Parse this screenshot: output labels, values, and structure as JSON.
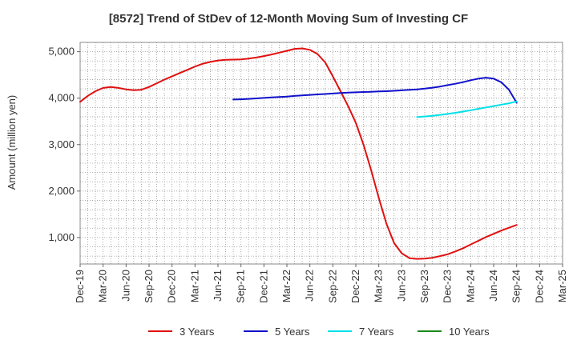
{
  "chart_data": {
    "type": "line",
    "title": "[8572]  Trend of StDev of 12-Month Moving Sum of Investing CF",
    "xlabel": "",
    "ylabel": "Amount (million yen)",
    "ylim": [
      430,
      5200
    ],
    "yticks": [
      1000,
      2000,
      3000,
      4000,
      5000
    ],
    "ytick_labels": [
      "1,000",
      "2,000",
      "3,000",
      "4,000",
      "5,000"
    ],
    "xtick_labels": [
      "Dec-19",
      "Mar-20",
      "Jun-20",
      "Sep-20",
      "Dec-20",
      "Mar-21",
      "Jun-21",
      "Sep-21",
      "Dec-21",
      "Mar-22",
      "Jun-22",
      "Sep-22",
      "Dec-22",
      "Mar-23",
      "Jun-23",
      "Sep-23",
      "Dec-23",
      "Mar-24",
      "Jun-24",
      "Sep-24",
      "Dec-24",
      "Mar-25"
    ],
    "grid": true,
    "legend_position": "bottom",
    "series": [
      {
        "name": "3 Years",
        "color": "#e01010",
        "points": [
          [
            "Dec-19",
            3920
          ],
          [
            "Jan-20",
            4050
          ],
          [
            "Feb-20",
            4150
          ],
          [
            "Mar-20",
            4220
          ],
          [
            "Apr-20",
            4240
          ],
          [
            "May-20",
            4220
          ],
          [
            "Jun-20",
            4190
          ],
          [
            "Jul-20",
            4170
          ],
          [
            "Aug-20",
            4180
          ],
          [
            "Sep-20",
            4240
          ],
          [
            "Oct-20",
            4320
          ],
          [
            "Nov-20",
            4400
          ],
          [
            "Dec-20",
            4470
          ],
          [
            "Jan-21",
            4540
          ],
          [
            "Feb-21",
            4610
          ],
          [
            "Mar-21",
            4680
          ],
          [
            "Apr-21",
            4740
          ],
          [
            "May-21",
            4780
          ],
          [
            "Jun-21",
            4810
          ],
          [
            "Jul-21",
            4825
          ],
          [
            "Aug-21",
            4830
          ],
          [
            "Sep-21",
            4835
          ],
          [
            "Oct-21",
            4850
          ],
          [
            "Nov-21",
            4875
          ],
          [
            "Dec-21",
            4905
          ],
          [
            "Jan-22",
            4940
          ],
          [
            "Feb-22",
            4980
          ],
          [
            "Mar-22",
            5020
          ],
          [
            "Apr-22",
            5060
          ],
          [
            "May-22",
            5070
          ],
          [
            "Jun-22",
            5040
          ],
          [
            "Jul-22",
            4950
          ],
          [
            "Aug-22",
            4770
          ],
          [
            "Sep-22",
            4470
          ],
          [
            "Oct-22",
            4150
          ],
          [
            "Nov-22",
            3830
          ],
          [
            "Dec-22",
            3470
          ],
          [
            "Jan-23",
            3000
          ],
          [
            "Feb-23",
            2450
          ],
          [
            "Mar-23",
            1850
          ],
          [
            "Apr-23",
            1300
          ],
          [
            "May-23",
            880
          ],
          [
            "Jun-23",
            660
          ],
          [
            "Jul-23",
            555
          ],
          [
            "Aug-23",
            540
          ],
          [
            "Sep-23",
            545
          ],
          [
            "Oct-23",
            565
          ],
          [
            "Nov-23",
            600
          ],
          [
            "Dec-23",
            640
          ],
          [
            "Jan-24",
            700
          ],
          [
            "Feb-24",
            770
          ],
          [
            "Mar-24",
            850
          ],
          [
            "Apr-24",
            930
          ],
          [
            "May-24",
            1010
          ],
          [
            "Jun-24",
            1080
          ],
          [
            "Jul-24",
            1150
          ],
          [
            "Aug-24",
            1210
          ],
          [
            "Sep-24",
            1270
          ]
        ]
      },
      {
        "name": "5 Years",
        "color": "#1010cc",
        "points": [
          [
            "Aug-21",
            3970
          ],
          [
            "Sep-21",
            3975
          ],
          [
            "Oct-21",
            3985
          ],
          [
            "Nov-21",
            3995
          ],
          [
            "Dec-21",
            4005
          ],
          [
            "Jan-22",
            4015
          ],
          [
            "Feb-22",
            4025
          ],
          [
            "Mar-22",
            4035
          ],
          [
            "Apr-22",
            4048
          ],
          [
            "May-22",
            4060
          ],
          [
            "Jun-22",
            4070
          ],
          [
            "Jul-22",
            4080
          ],
          [
            "Aug-22",
            4090
          ],
          [
            "Sep-22",
            4100
          ],
          [
            "Oct-22",
            4110
          ],
          [
            "Nov-22",
            4118
          ],
          [
            "Dec-22",
            4125
          ],
          [
            "Jan-23",
            4132
          ],
          [
            "Feb-23",
            4138
          ],
          [
            "Mar-23",
            4145
          ],
          [
            "Apr-23",
            4150
          ],
          [
            "May-23",
            4158
          ],
          [
            "Jun-23",
            4168
          ],
          [
            "Jul-23",
            4178
          ],
          [
            "Aug-23",
            4190
          ],
          [
            "Sep-23",
            4205
          ],
          [
            "Oct-23",
            4225
          ],
          [
            "Nov-23",
            4250
          ],
          [
            "Dec-23",
            4280
          ],
          [
            "Jan-24",
            4310
          ],
          [
            "Feb-24",
            4345
          ],
          [
            "Mar-24",
            4385
          ],
          [
            "Apr-24",
            4420
          ],
          [
            "May-24",
            4440
          ],
          [
            "Jun-24",
            4420
          ],
          [
            "Jul-24",
            4340
          ],
          [
            "Aug-24",
            4180
          ],
          [
            "Sep-24",
            3900
          ]
        ]
      },
      {
        "name": "7 Years",
        "color": "#00e0e8",
        "points": [
          [
            "Aug-23",
            3595
          ],
          [
            "Sep-23",
            3605
          ],
          [
            "Oct-23",
            3620
          ],
          [
            "Nov-23",
            3640
          ],
          [
            "Dec-23",
            3660
          ],
          [
            "Jan-24",
            3685
          ],
          [
            "Feb-24",
            3710
          ],
          [
            "Mar-24",
            3740
          ],
          [
            "Apr-24",
            3770
          ],
          [
            "May-24",
            3800
          ],
          [
            "Jun-24",
            3830
          ],
          [
            "Jul-24",
            3860
          ],
          [
            "Aug-24",
            3890
          ],
          [
            "Sep-24",
            3930
          ]
        ]
      },
      {
        "name": "10 Years",
        "color": "#1a8a1a",
        "points": []
      }
    ]
  }
}
